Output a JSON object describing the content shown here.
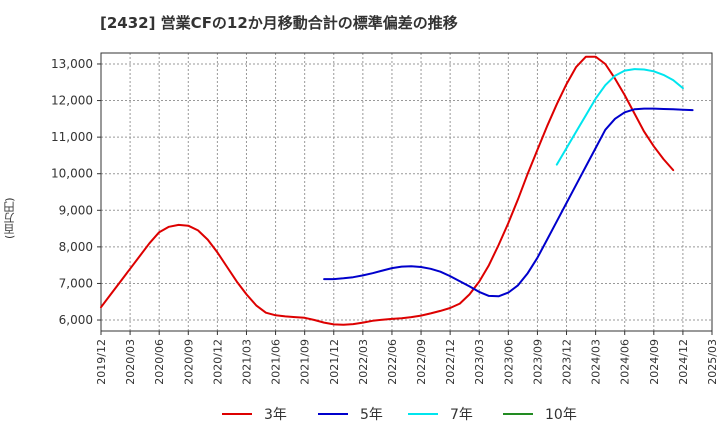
{
  "chart_data": {
    "type": "line",
    "title": "[2432]  営業CFの12か月移動合計の標準偏差の推移",
    "ylabel": "(百万円)",
    "xlabel": "",
    "ylim": [
      5700,
      13300
    ],
    "yticks": [
      6000,
      7000,
      8000,
      9000,
      10000,
      11000,
      12000,
      13000
    ],
    "ytick_labels": [
      "6,000",
      "7,000",
      "8,000",
      "9,000",
      "10,000",
      "11,000",
      "12,000",
      "13,000"
    ],
    "xtick_labels": [
      "2019/12",
      "2020/03",
      "2020/06",
      "2020/09",
      "2020/12",
      "2021/03",
      "2021/06",
      "2021/09",
      "2021/12",
      "2022/03",
      "2022/06",
      "2022/09",
      "2022/12",
      "2023/03",
      "2023/06",
      "2023/09",
      "2023/12",
      "2024/03",
      "2024/06",
      "2024/09",
      "2024/12",
      "2025/03"
    ],
    "grid": true,
    "legend_position": "bottom",
    "series": [
      {
        "name": "3年",
        "color": "#dd0000",
        "start": "2019/12",
        "values": [
          6350,
          6700,
          7050,
          7400,
          7750,
          8100,
          8400,
          8550,
          8600,
          8580,
          8450,
          8200,
          7850,
          7450,
          7050,
          6700,
          6400,
          6200,
          6130,
          6100,
          6080,
          6060,
          6000,
          5930,
          5880,
          5870,
          5890,
          5930,
          5980,
          6010,
          6030,
          6050,
          6080,
          6120,
          6180,
          6250,
          6330,
          6450,
          6700,
          7050,
          7500,
          8050,
          8650,
          9300,
          10000,
          10650,
          11300,
          11900,
          12450,
          12920,
          13200,
          13200,
          13000,
          12600,
          12150,
          11650,
          11150,
          10750,
          10400,
          10100
        ]
      },
      {
        "name": "5年",
        "color": "#0000cc",
        "start": "2021/11",
        "values": [
          7120,
          7120,
          7140,
          7170,
          7220,
          7280,
          7350,
          7420,
          7460,
          7470,
          7450,
          7400,
          7320,
          7200,
          7060,
          6920,
          6770,
          6660,
          6650,
          6750,
          6950,
          7280,
          7700,
          8200,
          8700,
          9200,
          9700,
          10200,
          10700,
          11200,
          11500,
          11680,
          11760,
          11780,
          11780,
          11770,
          11760,
          11750,
          11740
        ]
      },
      {
        "name": "7年",
        "color": "#00e5ee",
        "start": "2023/11",
        "values": [
          10250,
          10700,
          11150,
          11600,
          12050,
          12420,
          12680,
          12820,
          12860,
          12850,
          12800,
          12700,
          12560,
          12340
        ]
      },
      {
        "name": "10年",
        "color": "#228b22",
        "start": "2025/01",
        "values": []
      }
    ]
  }
}
